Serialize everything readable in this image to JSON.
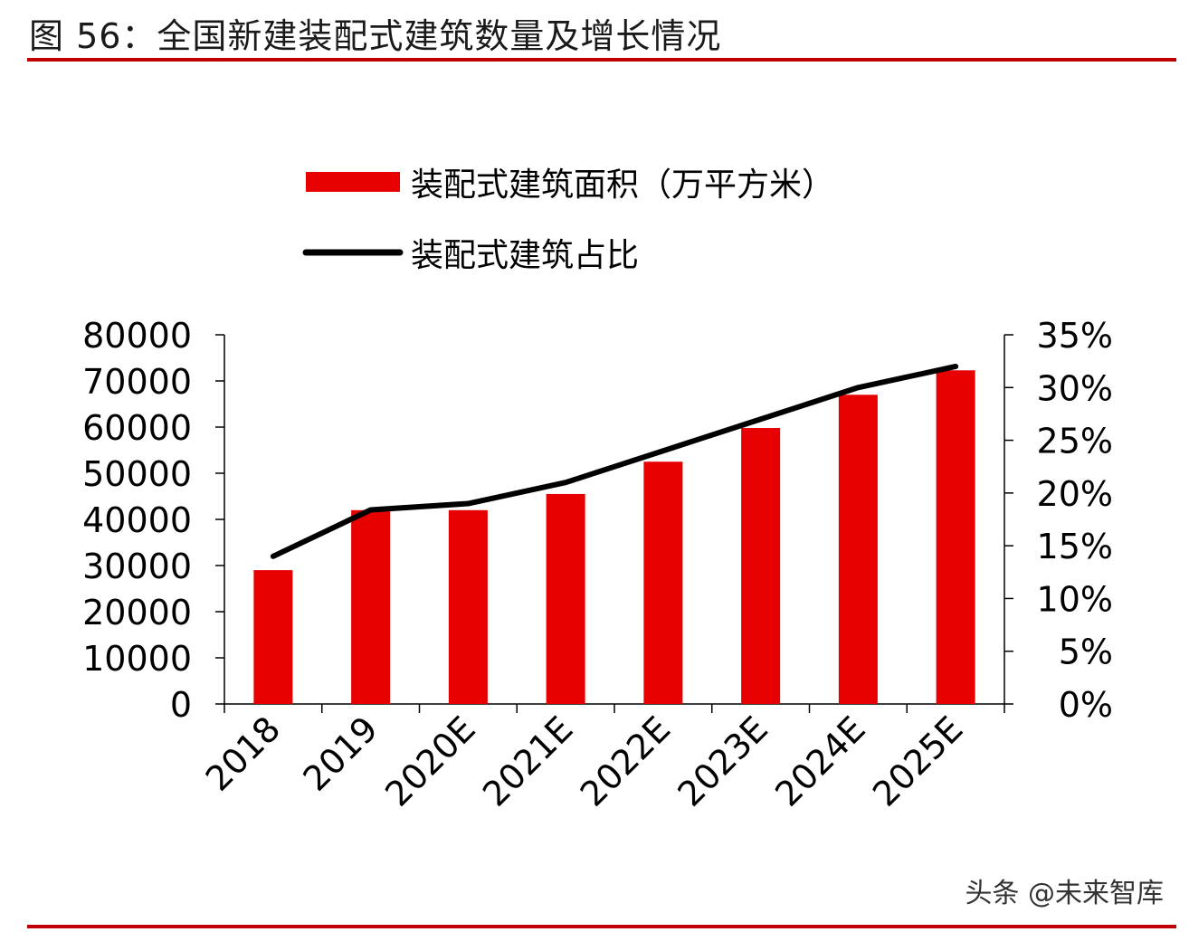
{
  "figure": {
    "title": "图 56：全国新建装配式建筑数量及增长情况",
    "watermark": "头条 @未来智库"
  },
  "colors": {
    "bar": "#E60000",
    "line": "#000000",
    "rule": "#C00000"
  },
  "chart_data": {
    "type": "bar",
    "title": "",
    "xlabel": "",
    "ylabel": "",
    "categories": [
      "2018",
      "2019",
      "2020E",
      "2021E",
      "2022E",
      "2023E",
      "2024E",
      "2025E"
    ],
    "series": [
      {
        "name": "装配式建筑面积（万平方米）",
        "type": "bar",
        "axis": "left",
        "values": [
          29000,
          42000,
          42000,
          45500,
          52500,
          59800,
          67000,
          72300
        ]
      },
      {
        "name": "装配式建筑占比",
        "type": "line",
        "axis": "right",
        "values": [
          0.14,
          0.184,
          0.19,
          0.21,
          0.24,
          0.27,
          0.3,
          0.32
        ]
      }
    ],
    "ylim": [
      0,
      80000
    ],
    "y_ticks": [
      "0",
      "10000",
      "20000",
      "30000",
      "40000",
      "50000",
      "60000",
      "70000",
      "80000"
    ],
    "y2lim": [
      0,
      0.35
    ],
    "y2_ticks": [
      "0%",
      "5%",
      "10%",
      "15%",
      "20%",
      "25%",
      "30%",
      "35%"
    ],
    "legend_position": "top-left",
    "grid": false
  }
}
